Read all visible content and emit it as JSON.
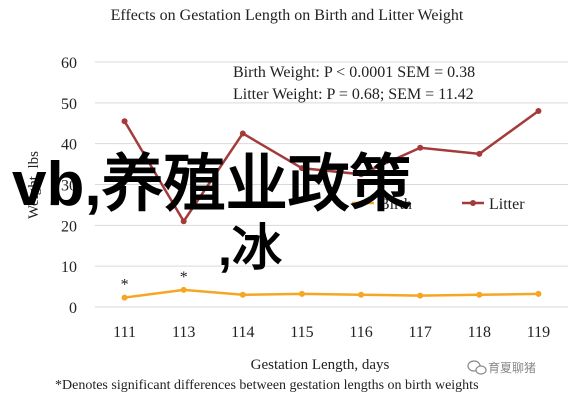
{
  "chart_data": {
    "type": "line",
    "title": "Effects on Gestation Length on Birth and Litter Weight",
    "xlabel": "Gestation Length, days",
    "ylabel": "Weight, lbs",
    "ylim": [
      0,
      60
    ],
    "yticks": [
      0,
      10,
      20,
      30,
      40,
      50,
      60
    ],
    "categories": [
      "111",
      "113",
      "114",
      "115",
      "116",
      "117",
      "118",
      "119"
    ],
    "grid": true,
    "legend_position": "center-right",
    "series": [
      {
        "name": "Birth",
        "color": "#F5A623",
        "values": [
          2.3,
          4.2,
          3.0,
          3.2,
          3.0,
          2.8,
          3.0,
          3.2
        ]
      },
      {
        "name": "Litter",
        "color": "#A33B3B",
        "values": [
          45.5,
          21.0,
          42.5,
          34.0,
          32.5,
          39.0,
          37.5,
          48.0
        ]
      }
    ],
    "annotations": [
      "Birth Weight: P < 0.0001 SEM = 0.38",
      "Litter Weight: P = 0.68; SEM = 11.42"
    ],
    "significance_markers": [
      {
        "category": "111",
        "symbol": "*"
      },
      {
        "category": "113",
        "symbol": "*"
      }
    ],
    "footnote": "*Denotes significant differences between gestation lengths on birth weights"
  },
  "overlay": {
    "text_line1": "vb,养殖业政策",
    "text_line2": ",冰",
    "color": "#000000"
  },
  "watermark": {
    "text": "育夏聊猪",
    "icon": "wechat-icon"
  }
}
